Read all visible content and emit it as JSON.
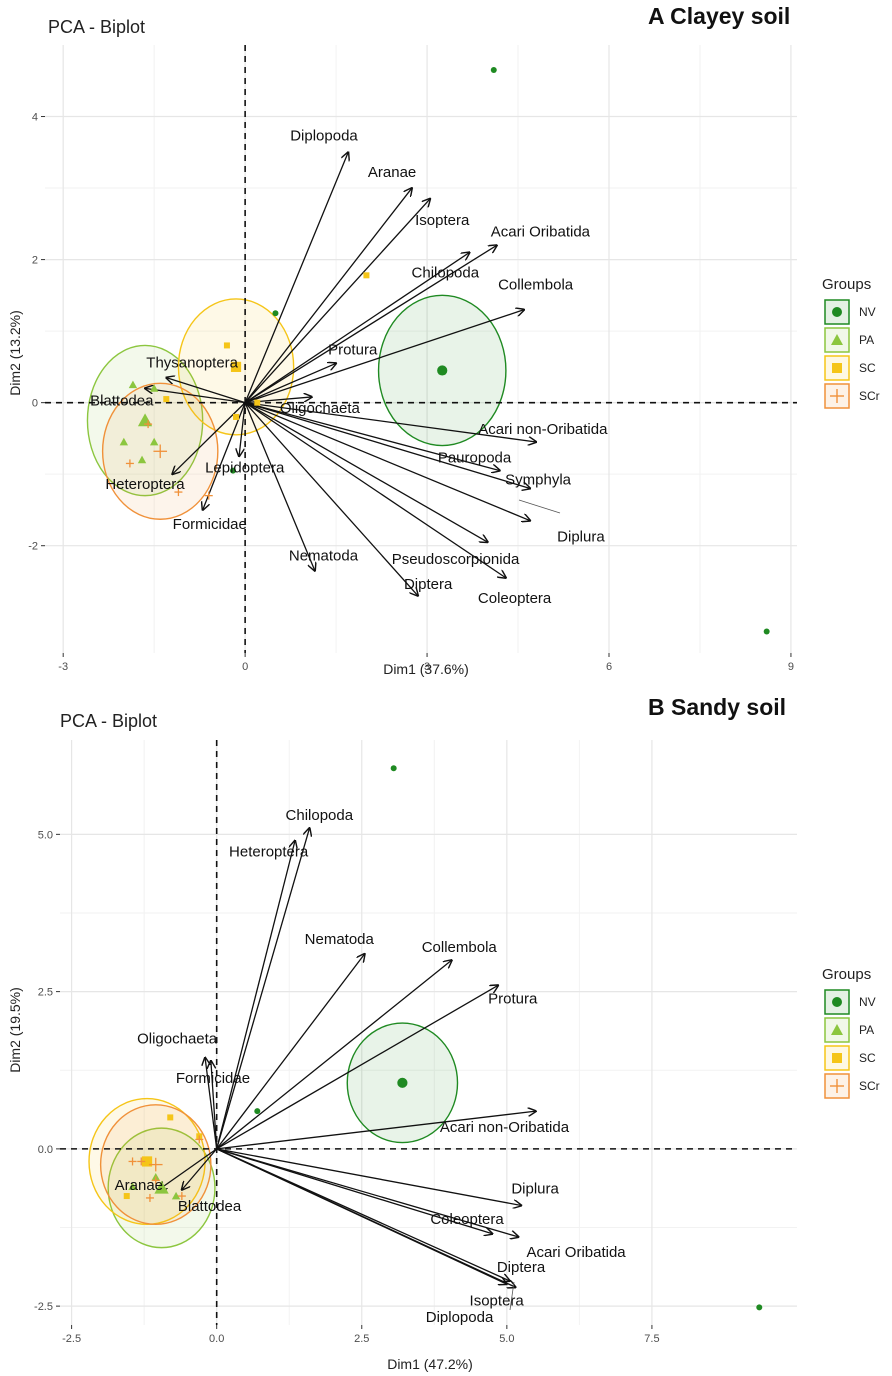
{
  "legend": {
    "title": "Groups",
    "items": [
      {
        "name": "NV",
        "color": "#1f8a22",
        "fill": "#1f8a22",
        "shape": "circle"
      },
      {
        "name": "PA",
        "color": "#8cc63f",
        "fill": "#8cc63f",
        "shape": "triangle"
      },
      {
        "name": "SC",
        "color": "#f5c518",
        "fill": "#f5c518",
        "shape": "square"
      },
      {
        "name": "SCr",
        "color": "#f0913a",
        "fill": "#f0913a",
        "shape": "cross"
      }
    ]
  },
  "chart_data": [
    {
      "type": "scatter",
      "subtype": "pca-biplot",
      "title": "PCA - Biplot",
      "tag": "A  Clayey soil",
      "xlabel": "Dim1 (37.6%)",
      "ylabel": "Dim2 (13.2%)",
      "xlim": [
        -3.3,
        9.1
      ],
      "ylim": [
        -3.5,
        5.0
      ],
      "xticks": [
        -3,
        0,
        3,
        6,
        9
      ],
      "xtick_labels": [
        "-3",
        "0",
        "3",
        "6",
        "9"
      ],
      "yticks": [
        -2,
        0,
        2,
        4
      ],
      "ytick_labels": [
        "-2",
        "0",
        "2",
        "4"
      ],
      "variables": [
        {
          "name": "Diplopoda",
          "x": 1.7,
          "y": 3.5
        },
        {
          "name": "Aranae",
          "x": 2.75,
          "y": 3.0
        },
        {
          "name": "Isoptera",
          "x": 3.05,
          "y": 2.85
        },
        {
          "name": "Acari Oribatida",
          "x": 4.15,
          "y": 2.2
        },
        {
          "name": "Chilopoda",
          "x": 3.7,
          "y": 2.1
        },
        {
          "name": "Collembola",
          "x": 4.6,
          "y": 1.3
        },
        {
          "name": "Protura",
          "x": 1.5,
          "y": 0.55
        },
        {
          "name": "Thysanoptera",
          "x": -1.3,
          "y": 0.35
        },
        {
          "name": "Blattodea",
          "x": -1.65,
          "y": 0.2
        },
        {
          "name": "Oligochaeta",
          "x": 1.1,
          "y": 0.08
        },
        {
          "name": "Acari non-Oribatida",
          "x": 4.8,
          "y": -0.55
        },
        {
          "name": "Lepidoptera",
          "x": -0.1,
          "y": -0.75
        },
        {
          "name": "Pauropoda",
          "x": 4.2,
          "y": -0.95
        },
        {
          "name": "Heteroptera",
          "x": -1.2,
          "y": -1.0
        },
        {
          "name": "Symphyla",
          "x": 4.7,
          "y": -1.2
        },
        {
          "name": "Formicidae",
          "x": -0.7,
          "y": -1.5
        },
        {
          "name": "Diplura",
          "x": 4.7,
          "y": -1.65
        },
        {
          "name": "Pseudoscorpionida",
          "x": 4.0,
          "y": -1.95
        },
        {
          "name": "Nematoda",
          "x": 1.15,
          "y": -2.35
        },
        {
          "name": "Coleoptera",
          "x": 4.3,
          "y": -2.45
        },
        {
          "name": "Diptera",
          "x": 2.85,
          "y": -2.7
        }
      ],
      "groups": [
        {
          "name": "NV",
          "centroid": [
            3.25,
            0.45
          ],
          "ellipse_r": [
            1.05,
            1.05
          ],
          "points": [
            [
              8.6,
              -3.2
            ],
            [
              4.1,
              4.65
            ],
            [
              0.5,
              1.25
            ],
            [
              -0.2,
              -0.95
            ]
          ]
        },
        {
          "name": "PA",
          "centroid": [
            -1.65,
            -0.25
          ],
          "ellipse_r": [
            0.95,
            1.05
          ],
          "points": [
            [
              -2.0,
              -0.55
            ],
            [
              -1.85,
              0.25
            ],
            [
              -1.7,
              -0.8
            ],
            [
              -1.5,
              -0.55
            ],
            [
              -1.5,
              0.2
            ]
          ]
        },
        {
          "name": "SC",
          "centroid": [
            -0.15,
            0.5
          ],
          "ellipse_r": [
            0.95,
            0.95
          ],
          "points": [
            [
              2.0,
              1.78
            ],
            [
              -1.3,
              0.05
            ],
            [
              -0.15,
              -0.2
            ],
            [
              -0.3,
              0.8
            ],
            [
              0.2,
              0.0
            ]
          ]
        },
        {
          "name": "SCr",
          "centroid": [
            -1.4,
            -0.68
          ],
          "ellipse_r": [
            0.95,
            0.95
          ],
          "points": [
            [
              -1.6,
              -0.3
            ],
            [
              -0.6,
              -1.3
            ],
            [
              -1.1,
              -1.25
            ],
            [
              -1.9,
              -0.85
            ]
          ]
        }
      ]
    },
    {
      "type": "scatter",
      "subtype": "pca-biplot",
      "title": "PCA - Biplot",
      "tag": "B   Sandy soil",
      "xlabel": "Dim1 (47.2%)",
      "ylabel": "Dim2 (19.5%)",
      "xlim": [
        -2.7,
        10.0
      ],
      "ylim": [
        -2.8,
        6.5
      ],
      "xticks": [
        -2.5,
        0,
        2.5,
        5,
        7.5
      ],
      "xtick_labels": [
        "-2.5",
        "0.0",
        "2.5",
        "5.0",
        "7.5"
      ],
      "yticks": [
        -2.5,
        0,
        2.5,
        5
      ],
      "ytick_labels": [
        "-2.5",
        "0.0",
        "2.5",
        "5.0"
      ],
      "variables": [
        {
          "name": "Chilopoda",
          "x": 1.6,
          "y": 5.1
        },
        {
          "name": "Heteroptera",
          "x": 1.35,
          "y": 4.9
        },
        {
          "name": "Nematoda",
          "x": 2.55,
          "y": 3.1
        },
        {
          "name": "Collembola",
          "x": 4.05,
          "y": 3.0
        },
        {
          "name": "Protura",
          "x": 4.85,
          "y": 2.6
        },
        {
          "name": "Oligochaeta",
          "x": -0.2,
          "y": 1.45
        },
        {
          "name": "Formicidae",
          "x": -0.1,
          "y": 1.4
        },
        {
          "name": "Acari non-Oribatida",
          "x": 5.5,
          "y": 0.6
        },
        {
          "name": "Aranae",
          "x": -1.0,
          "y": -0.65
        },
        {
          "name": "Blattodea",
          "x": -0.6,
          "y": -0.65
        },
        {
          "name": "Diplura",
          "x": 5.25,
          "y": -0.9
        },
        {
          "name": "Coleoptera",
          "x": 4.75,
          "y": -1.35
        },
        {
          "name": "Acari Oribatida",
          "x": 5.2,
          "y": -1.4
        },
        {
          "name": "Diptera",
          "x": 5.0,
          "y": -2.15
        },
        {
          "name": "Isoptera",
          "x": 5.15,
          "y": -2.2
        },
        {
          "name": "Diplopoda",
          "x": 5.05,
          "y": -2.1
        }
      ],
      "groups": [
        {
          "name": "NV",
          "centroid": [
            3.2,
            1.05
          ],
          "ellipse_r": [
            0.95,
            0.95
          ],
          "points": [
            [
              9.35,
              -2.52
            ],
            [
              3.05,
              6.05
            ],
            [
              0.7,
              0.6
            ]
          ]
        },
        {
          "name": "PA",
          "centroid": [
            -0.95,
            -0.62
          ],
          "ellipse_r": [
            0.92,
            0.95
          ],
          "points": [
            [
              -1.45,
              -0.6
            ],
            [
              -0.7,
              -0.75
            ],
            [
              -1.05,
              -0.45
            ]
          ]
        },
        {
          "name": "SC",
          "centroid": [
            -1.2,
            -0.2
          ],
          "ellipse_r": [
            1.0,
            1.0
          ],
          "points": [
            [
              -0.8,
              0.5
            ],
            [
              -0.3,
              0.2
            ],
            [
              -1.55,
              -0.75
            ]
          ]
        },
        {
          "name": "SCr",
          "centroid": [
            -1.05,
            -0.25
          ],
          "ellipse_r": [
            0.95,
            0.95
          ],
          "points": [
            [
              -1.45,
              -0.2
            ],
            [
              -1.05,
              -0.5
            ],
            [
              -0.6,
              -0.75
            ],
            [
              -1.15,
              -0.78
            ],
            [
              -0.3,
              0.15
            ],
            [
              -1.3,
              -0.2
            ]
          ]
        }
      ]
    }
  ]
}
